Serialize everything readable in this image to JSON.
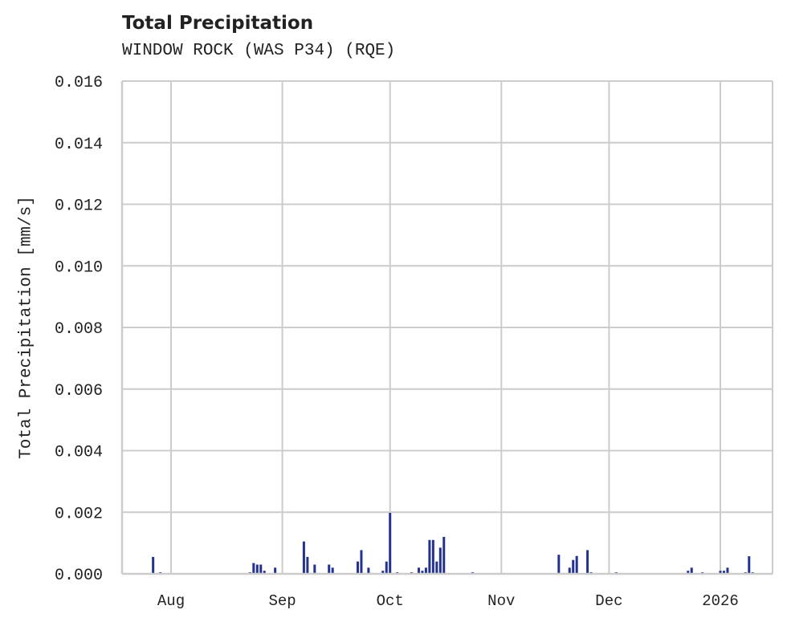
{
  "header": {
    "title": "Total Precipitation",
    "subtitle": "WINDOW ROCK (WAS P34) (RQE)"
  },
  "chart_data": {
    "type": "bar",
    "title": "Total Precipitation",
    "subtitle": "WINDOW ROCK (WAS P34) (RQE)",
    "xlabel": "",
    "ylabel": "Total Precipitation [mm/s]",
    "ylim": [
      0,
      0.016
    ],
    "yticks": [
      "0.000",
      "0.002",
      "0.004",
      "0.006",
      "0.008",
      "0.010",
      "0.012",
      "0.014",
      "0.016"
    ],
    "xticks": [
      "Aug",
      "Sep",
      "Oct",
      "Nov",
      "Dec",
      "2026"
    ],
    "grid": true,
    "legend": null,
    "color": "#23318f",
    "series": [
      {
        "name": "Total Precipitation",
        "points": [
          {
            "x": "2025-07-27",
            "y": 0.00055
          },
          {
            "x": "2025-07-29",
            "y": 5e-05
          },
          {
            "x": "2025-08-23",
            "y": 5e-05
          },
          {
            "x": "2025-08-24",
            "y": 0.00035
          },
          {
            "x": "2025-08-25",
            "y": 0.0003
          },
          {
            "x": "2025-08-26",
            "y": 0.0003
          },
          {
            "x": "2025-08-27",
            "y": 0.0001
          },
          {
            "x": "2025-08-30",
            "y": 0.0002
          },
          {
            "x": "2025-09-07",
            "y": 0.00105
          },
          {
            "x": "2025-09-08",
            "y": 0.00055
          },
          {
            "x": "2025-09-10",
            "y": 0.0003
          },
          {
            "x": "2025-09-14",
            "y": 0.0003
          },
          {
            "x": "2025-09-15",
            "y": 0.0002
          },
          {
            "x": "2025-09-22",
            "y": 0.0004
          },
          {
            "x": "2025-09-23",
            "y": 0.00077
          },
          {
            "x": "2025-09-25",
            "y": 0.0002
          },
          {
            "x": "2025-09-29",
            "y": 0.0001
          },
          {
            "x": "2025-09-30",
            "y": 0.0004
          },
          {
            "x": "2025-10-01",
            "y": 0.00198
          },
          {
            "x": "2025-10-03",
            "y": 5e-05
          },
          {
            "x": "2025-10-07",
            "y": 5e-05
          },
          {
            "x": "2025-10-09",
            "y": 0.0002
          },
          {
            "x": "2025-10-10",
            "y": 0.0001
          },
          {
            "x": "2025-10-11",
            "y": 0.0002
          },
          {
            "x": "2025-10-12",
            "y": 0.0011
          },
          {
            "x": "2025-10-13",
            "y": 0.0011
          },
          {
            "x": "2025-10-14",
            "y": 0.0004
          },
          {
            "x": "2025-10-15",
            "y": 0.00085
          },
          {
            "x": "2025-10-16",
            "y": 0.0012
          },
          {
            "x": "2025-10-24",
            "y": 5e-05
          },
          {
            "x": "2025-11-17",
            "y": 0.00062
          },
          {
            "x": "2025-11-20",
            "y": 0.0002
          },
          {
            "x": "2025-11-21",
            "y": 0.00045
          },
          {
            "x": "2025-11-22",
            "y": 0.00058
          },
          {
            "x": "2025-11-25",
            "y": 0.00077
          },
          {
            "x": "2025-11-26",
            "y": 5e-05
          },
          {
            "x": "2025-12-03",
            "y": 5e-05
          },
          {
            "x": "2025-12-23",
            "y": 0.0001
          },
          {
            "x": "2025-12-24",
            "y": 0.0002
          },
          {
            "x": "2025-12-27",
            "y": 5e-05
          },
          {
            "x": "2026-01-01",
            "y": 0.0001
          },
          {
            "x": "2026-01-02",
            "y": 0.0001
          },
          {
            "x": "2026-01-03",
            "y": 0.0002
          },
          {
            "x": "2026-01-08",
            "y": 5e-05
          },
          {
            "x": "2026-01-09",
            "y": 0.00057
          },
          {
            "x": "2026-01-10",
            "y": 5e-05
          }
        ]
      }
    ]
  }
}
